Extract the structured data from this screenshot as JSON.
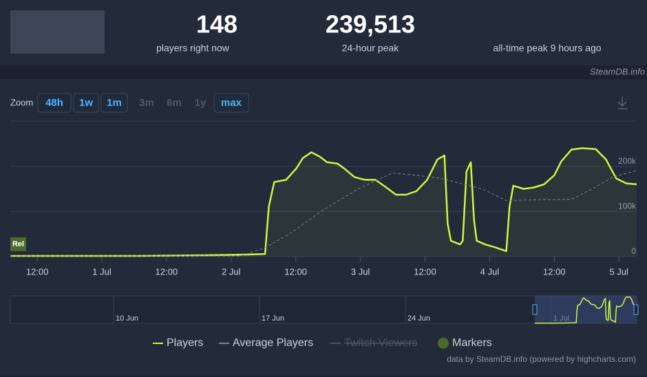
{
  "header": {
    "stats": [
      {
        "value": "148",
        "label": "players right now"
      },
      {
        "value": "239,513",
        "label": "24-hour peak"
      },
      {
        "label": "all-time peak 9 hours ago"
      }
    ],
    "brand": "SteamDB.info"
  },
  "zoom": {
    "label": "Zoom",
    "buttons": [
      {
        "label": "48h",
        "enabled": true
      },
      {
        "label": "1w",
        "enabled": true
      },
      {
        "label": "1m",
        "enabled": true
      },
      {
        "label": "3m",
        "enabled": false
      },
      {
        "label": "6m",
        "enabled": false
      },
      {
        "label": "1y",
        "enabled": false
      },
      {
        "label": "max",
        "enabled": true
      }
    ]
  },
  "chart_data": {
    "type": "line",
    "xlim": [
      7,
      123.3
    ],
    "xticks": [
      {
        "value": 12,
        "label": "12:00"
      },
      {
        "value": 24,
        "label": "1 Jul"
      },
      {
        "value": 36,
        "label": "12:00"
      },
      {
        "value": 48,
        "label": "2 Jul"
      },
      {
        "value": 60,
        "label": "12:00"
      },
      {
        "value": 72,
        "label": "3 Jul"
      },
      {
        "value": 84,
        "label": "12:00"
      },
      {
        "value": 96,
        "label": "4 Jul"
      },
      {
        "value": 108,
        "label": "12:00"
      },
      {
        "value": 120,
        "label": "5 Jul"
      }
    ],
    "ylim": [
      0,
      300000
    ],
    "yticks": [
      0,
      {
        "value": 100000,
        "label": "100k"
      },
      {
        "value": 200000,
        "label": "200k"
      }
    ],
    "grid": true,
    "series": [
      {
        "name": "Players",
        "color": "#d1f542",
        "dash": false,
        "x": [
          7.0,
          17.9,
          30.7,
          43.4,
          51.1,
          54.3,
          55.0,
          56.0,
          58.2,
          60.1,
          61.3,
          62.9,
          64.5,
          65.8,
          67.7,
          69.0,
          70.9,
          72.9,
          74.8,
          76.7,
          78.6,
          80.5,
          82.4,
          84.4,
          86.3,
          87.6,
          88.2,
          88.8,
          90.5,
          91.0,
          91.7,
          92.5,
          93.1,
          93.6,
          95.2,
          97.2,
          99.1,
          99.7,
          100.4,
          102.3,
          104.2,
          106.1,
          108.0,
          109.3,
          111.2,
          113.2,
          115.7,
          117.6,
          119.5,
          121.4,
          123.3
        ],
        "values": [
          1500,
          1500,
          1500,
          3000,
          4500,
          6000,
          111000,
          165000,
          170000,
          195000,
          218000,
          231000,
          221000,
          209000,
          206000,
          195000,
          176000,
          170000,
          170000,
          154000,
          137000,
          137000,
          145000,
          170000,
          215000,
          224000,
          73000,
          35000,
          27000,
          35000,
          188000,
          209000,
          81000,
          35000,
          27000,
          20000,
          12000,
          111000,
          157000,
          150000,
          153000,
          160000,
          180000,
          211000,
          237000,
          240000,
          238000,
          215000,
          173000,
          162000,
          160000
        ]
      },
      {
        "name": "Average Players",
        "color": "#7c8594",
        "dash": true,
        "x": [
          7.0,
          49.8,
          54.3,
          58.8,
          65.2,
          71.6,
          78.0,
          83.1,
          87.0,
          94.6,
          99.1,
          102.3,
          111.2,
          115.1,
          118.9,
          123.3
        ],
        "values": [
          1500,
          1500,
          20000,
          50000,
          104000,
          150000,
          185000,
          179000,
          173000,
          150000,
          124000,
          125000,
          127000,
          150000,
          176000,
          191000
        ]
      },
      {
        "name": "Twitch Viewers",
        "color": "#4b5566",
        "dash": true,
        "visible": false,
        "x": [],
        "values": []
      }
    ],
    "markers": {
      "name": "Markers",
      "color": "#4b6b2c",
      "items": [
        {
          "x": 7.0,
          "label": "Rel"
        }
      ]
    },
    "navigator": {
      "labels": [
        "10 Jun",
        "17 Jun",
        "24 Jun",
        "1 Jul"
      ]
    },
    "credit": "data by SteamDB.info (powered by highcharts.com)"
  }
}
